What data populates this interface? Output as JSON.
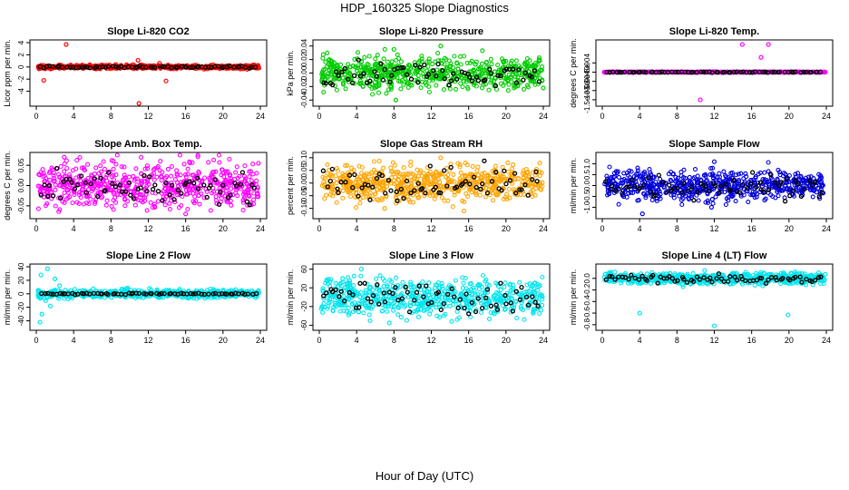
{
  "page": {
    "title": "HDP_160325  Slope Diagnostics",
    "xlabel": "Hour of Day (UTC)"
  },
  "colors": {
    "overlay": "#000000"
  },
  "chart_data": [
    {
      "type": "scatter",
      "title": "Slope Li-820 CO2",
      "ylabel": "Licor ppm per min.",
      "xlim": [
        0,
        24
      ],
      "xticks": [
        0,
        4,
        8,
        12,
        16,
        20,
        24
      ],
      "ylim": [
        -6,
        4
      ],
      "yticks": [
        -4,
        -2,
        0,
        2,
        4
      ],
      "yticklabels": [
        "-4",
        "-2",
        "0",
        "2",
        "4"
      ],
      "color": "#ff0000",
      "spread": 0.15,
      "overlay_spread": 0.08,
      "outliers": [
        [
          3.2,
          3.7
        ],
        [
          0.8,
          -2.2
        ],
        [
          11.0,
          -6.0
        ],
        [
          13.9,
          -2.3
        ],
        [
          10.9,
          1.1
        ],
        [
          13.2,
          0.6
        ]
      ]
    },
    {
      "type": "scatter",
      "title": "Slope Li-820 Pressure",
      "ylabel": "kPa per min.",
      "xlim": [
        0,
        24
      ],
      "xticks": [
        0,
        4,
        8,
        12,
        16,
        20,
        24
      ],
      "ylim": [
        -0.045,
        0.045
      ],
      "yticks": [
        -0.04,
        -0.02,
        0.0,
        0.02,
        0.04
      ],
      "yticklabels": [
        "-0.04",
        "-0.02",
        "0.00",
        "0.02",
        "0.04"
      ],
      "color": "#00cc00",
      "spread": 0.012,
      "overlay_spread": 0.008,
      "outliers": [
        [
          8.0,
          0.035
        ],
        [
          13.0,
          0.04
        ],
        [
          8.2,
          -0.04
        ],
        [
          24.0,
          -0.022
        ]
      ]
    },
    {
      "type": "scatter",
      "title": "Slope Li-820 Temp.",
      "ylabel": "degrees C per min.",
      "xlim": [
        0,
        24
      ],
      "xticks": [
        0,
        4,
        8,
        12,
        16,
        20,
        24
      ],
      "ylim": [
        -0.0017,
        0.0016
      ],
      "yticks": [
        -0.0015,
        -0.001,
        -0.0005,
        0.0,
        0.0005
      ],
      "yticklabels": [
        "-1.5e-03",
        "-1e-03",
        "-5e-04",
        "0e+00",
        "5e-04"
      ],
      "color": "#ff00ff",
      "spread": 1e-05,
      "overlay_spread": 1e-05,
      "outliers": [
        [
          15.0,
          0.0015
        ],
        [
          17.8,
          0.0015
        ],
        [
          17.0,
          0.0008
        ],
        [
          10.5,
          -0.0015
        ]
      ]
    },
    {
      "type": "scatter",
      "title": "Slope Amb. Box Temp.",
      "ylabel": "degrees C per min.",
      "xlim": [
        0,
        24
      ],
      "xticks": [
        0,
        4,
        8,
        12,
        16,
        20,
        24
      ],
      "ylim": [
        -0.075,
        0.075
      ],
      "yticks": [
        -0.05,
        0.0,
        0.05
      ],
      "yticklabels": [
        "-0.05",
        "0.00",
        "0.05"
      ],
      "color": "#ff00ff",
      "spread": 0.028,
      "overlay_spread": 0.02,
      "outliers": [
        [
          3.0,
          0.07
        ],
        [
          16.0,
          -0.07
        ],
        [
          23.8,
          0.055
        ]
      ]
    },
    {
      "type": "scatter",
      "title": "Slope Gas Stream RH",
      "ylabel": "percent per min.",
      "xlim": [
        0,
        24
      ],
      "xticks": [
        0,
        4,
        8,
        12,
        16,
        20,
        24
      ],
      "ylim": [
        -0.13,
        0.11
      ],
      "yticks": [
        -0.1,
        -0.05,
        0.0,
        0.05,
        0.1
      ],
      "yticklabels": [
        "-0.10",
        "-0.05",
        "0.00",
        "0.05",
        "0.10"
      ],
      "color": "#ffa500",
      "spread": 0.035,
      "overlay_spread": 0.03,
      "outliers": [
        [
          13.0,
          0.1
        ],
        [
          7.0,
          -0.1
        ],
        [
          15.5,
          -0.11
        ],
        [
          20.2,
          0.08
        ]
      ]
    },
    {
      "type": "scatter",
      "title": "Slope Sample Flow",
      "ylabel": "ml/min per min.",
      "xlim": [
        0,
        24
      ],
      "xticks": [
        0,
        4,
        8,
        12,
        16,
        20,
        24
      ],
      "ylim": [
        -1.4,
        1.4
      ],
      "yticks": [
        -1.0,
        -0.5,
        0.0,
        0.5,
        1.0
      ],
      "yticklabels": [
        "-1.0",
        "-0.5",
        "0.0",
        "0.5",
        "1.0"
      ],
      "color": "#0000dd",
      "spread": 0.35,
      "overlay_spread": 0.3,
      "outliers": [
        [
          4.3,
          -1.3
        ],
        [
          12.0,
          1.1
        ],
        [
          11.7,
          -1.0
        ]
      ]
    },
    {
      "type": "scatter",
      "title": "Slope Line 2 Flow",
      "ylabel": "ml/min per min.",
      "xlim": [
        0,
        24
      ],
      "xticks": [
        0,
        4,
        8,
        12,
        16,
        20,
        24
      ],
      "ylim": [
        -50,
        40
      ],
      "yticks": [
        -40,
        -20,
        0,
        20,
        40
      ],
      "yticklabels": [
        "-40",
        "-20",
        "0",
        "20",
        "40"
      ],
      "color": "#00e5ee",
      "spread": 3,
      "overlay_spread": 0.5,
      "outliers": [
        [
          1.2,
          37
        ],
        [
          0.5,
          28
        ],
        [
          0.4,
          -42
        ],
        [
          0.6,
          -30
        ],
        [
          1.5,
          -18
        ],
        [
          2.0,
          22
        ],
        [
          2.5,
          12
        ],
        [
          1.0,
          -10
        ]
      ]
    },
    {
      "type": "scatter",
      "title": "Slope Line 3 Flow",
      "ylabel": "ml/min per min.",
      "xlim": [
        0,
        24
      ],
      "xticks": [
        0,
        4,
        8,
        12,
        16,
        20,
        24
      ],
      "ylim": [
        -65,
        65
      ],
      "yticks": [
        -60,
        -20,
        20,
        60
      ],
      "yticklabels": [
        "-60",
        "-20",
        "20",
        "60"
      ],
      "color": "#00e5ee",
      "spread": 20,
      "overlay_spread": 15,
      "outliers": [
        [
          4.5,
          60
        ],
        [
          7.5,
          -55
        ],
        [
          2.5,
          40
        ]
      ]
    },
    {
      "type": "scatter",
      "title": "Slope Line 4 (LT) Flow",
      "ylabel": "ml/min per min.",
      "xlim": [
        0,
        24
      ],
      "xticks": [
        0,
        4,
        8,
        12,
        16,
        20,
        24
      ],
      "ylim": [
        -0.85,
        0.2
      ],
      "yticks": [
        -0.8,
        -0.6,
        -0.4,
        -0.2,
        0.0
      ],
      "yticklabels": [
        "-0.8",
        "-0.6",
        "-0.4",
        "-0.2",
        "0.0"
      ],
      "color": "#00e5ee",
      "spread": 0.05,
      "overlay_spread": 0.04,
      "outliers": [
        [
          4.0,
          -0.6
        ],
        [
          19.9,
          -0.63
        ],
        [
          12.0,
          -0.82
        ]
      ]
    }
  ]
}
